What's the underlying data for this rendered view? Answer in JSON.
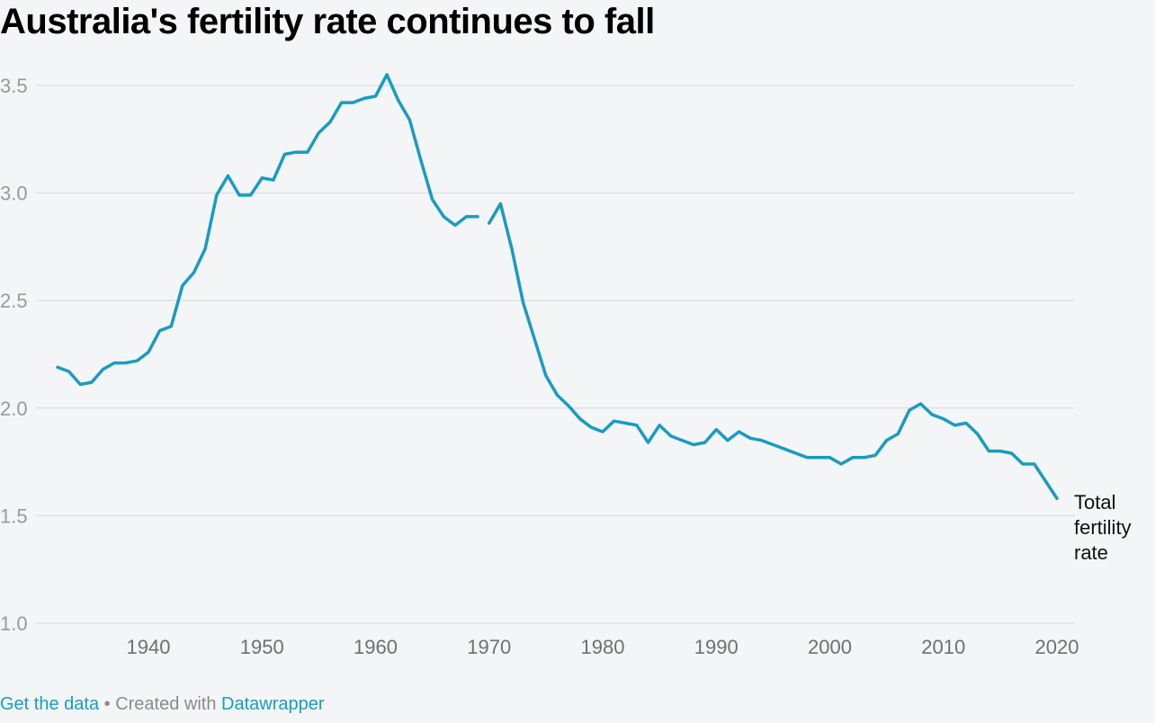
{
  "title": "Australia's fertility rate continues to fall",
  "footer": {
    "get_data": "Get the data",
    "separator": " • Created with ",
    "tool": "Datawrapper"
  },
  "colors": {
    "line": "#1a9bc1",
    "grid": "#dfe2e6",
    "background": "#f3f5f7"
  },
  "chart_data": {
    "type": "line",
    "title": "Australia's fertility rate continues to fall",
    "xlabel": "",
    "ylabel": "",
    "xlim": [
      1931,
      2020
    ],
    "ylim": [
      1.0,
      3.6
    ],
    "x_ticks": [
      "1940",
      "1950",
      "1960",
      "1970",
      "1980",
      "1990",
      "2000",
      "2010",
      "2020"
    ],
    "y_ticks": [
      "1.0",
      "1.5",
      "2.0",
      "2.5",
      "3.0",
      "3.5"
    ],
    "grid": true,
    "legend": "none",
    "series_label_lines": [
      "Total",
      "fertility",
      "rate"
    ],
    "series": [
      {
        "name": "Total fertility rate",
        "segments": [
          [
            [
              1932,
              2.19
            ],
            [
              1933,
              2.17
            ],
            [
              1934,
              2.11
            ],
            [
              1935,
              2.12
            ],
            [
              1936,
              2.18
            ],
            [
              1937,
              2.21
            ],
            [
              1938,
              2.21
            ],
            [
              1939,
              2.22
            ],
            [
              1940,
              2.26
            ],
            [
              1941,
              2.36
            ],
            [
              1942,
              2.38
            ],
            [
              1943,
              2.57
            ],
            [
              1944,
              2.63
            ],
            [
              1945,
              2.74
            ],
            [
              1946,
              2.99
            ],
            [
              1947,
              3.08
            ],
            [
              1948,
              2.99
            ],
            [
              1949,
              2.99
            ],
            [
              1950,
              3.07
            ],
            [
              1951,
              3.06
            ],
            [
              1952,
              3.18
            ],
            [
              1953,
              3.19
            ],
            [
              1954,
              3.19
            ],
            [
              1955,
              3.28
            ],
            [
              1956,
              3.33
            ],
            [
              1957,
              3.42
            ],
            [
              1958,
              3.42
            ],
            [
              1959,
              3.44
            ],
            [
              1960,
              3.45
            ],
            [
              1961,
              3.55
            ],
            [
              1962,
              3.43
            ],
            [
              1963,
              3.34
            ],
            [
              1964,
              3.15
            ],
            [
              1965,
              2.97
            ],
            [
              1966,
              2.89
            ],
            [
              1967,
              2.85
            ],
            [
              1968,
              2.89
            ],
            [
              1969,
              2.89
            ]
          ],
          [
            [
              1970,
              2.86
            ],
            [
              1971,
              2.95
            ],
            [
              1972,
              2.74
            ],
            [
              1973,
              2.49
            ],
            [
              1974,
              2.32
            ],
            [
              1975,
              2.15
            ],
            [
              1976,
              2.06
            ],
            [
              1977,
              2.01
            ],
            [
              1978,
              1.95
            ],
            [
              1979,
              1.91
            ],
            [
              1980,
              1.89
            ],
            [
              1981,
              1.94
            ],
            [
              1982,
              1.93
            ],
            [
              1983,
              1.92
            ],
            [
              1984,
              1.84
            ],
            [
              1985,
              1.92
            ],
            [
              1986,
              1.87
            ],
            [
              1987,
              1.85
            ],
            [
              1988,
              1.83
            ],
            [
              1989,
              1.84
            ],
            [
              1990,
              1.9
            ],
            [
              1991,
              1.85
            ],
            [
              1992,
              1.89
            ],
            [
              1993,
              1.86
            ],
            [
              1994,
              1.85
            ],
            [
              1995,
              1.83
            ],
            [
              1996,
              1.81
            ],
            [
              1997,
              1.79
            ],
            [
              1998,
              1.77
            ],
            [
              1999,
              1.77
            ],
            [
              2000,
              1.77
            ],
            [
              2001,
              1.74
            ],
            [
              2002,
              1.77
            ],
            [
              2003,
              1.77
            ],
            [
              2004,
              1.78
            ],
            [
              2005,
              1.85
            ],
            [
              2006,
              1.88
            ],
            [
              2007,
              1.99
            ],
            [
              2008,
              2.02
            ],
            [
              2009,
              1.97
            ],
            [
              2010,
              1.95
            ],
            [
              2011,
              1.92
            ],
            [
              2012,
              1.93
            ],
            [
              2013,
              1.88
            ],
            [
              2014,
              1.8
            ],
            [
              2015,
              1.8
            ],
            [
              2016,
              1.79
            ],
            [
              2017,
              1.74
            ],
            [
              2018,
              1.74
            ],
            [
              2019,
              1.66
            ],
            [
              2020,
              1.58
            ]
          ]
        ]
      }
    ]
  }
}
